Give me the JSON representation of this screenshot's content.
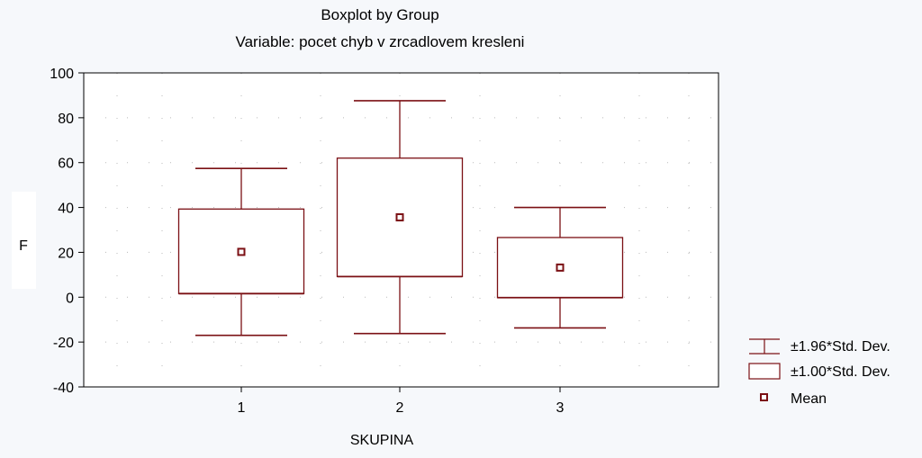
{
  "chart_data": {
    "type": "boxplot",
    "title": "Boxplot by Group",
    "subtitle": "Variable: pocet chyb v zrcadlovem kresleni",
    "xlabel": "SKUPINA",
    "ylabel": "F",
    "ylim": [
      -40,
      100
    ],
    "yticks": [
      100,
      80,
      60,
      40,
      20,
      0,
      -20,
      -40
    ],
    "categories": [
      "1",
      "2",
      "3"
    ],
    "boxes": [
      {
        "category": "1",
        "mean": 20.2,
        "sd1_low": 1.6,
        "sd1_high": 39.3,
        "sd196_low": -17.0,
        "sd196_high": 57.4
      },
      {
        "category": "2",
        "mean": 35.6,
        "sd1_low": 9.2,
        "sd1_high": 62.0,
        "sd196_low": -16.2,
        "sd196_high": 87.6
      },
      {
        "category": "3",
        "mean": 13.2,
        "sd1_low": -0.2,
        "sd1_high": 26.6,
        "sd196_low": -13.7,
        "sd196_high": 40.0
      }
    ],
    "legend": {
      "placement": "bottom-right",
      "items": [
        {
          "label": "±1.96*Std. Dev.",
          "kind": "whisker"
        },
        {
          "label": "±1.00*Std. Dev.",
          "kind": "box"
        },
        {
          "label": "Mean",
          "kind": "mean"
        }
      ]
    },
    "grid": "dotted",
    "colors": {
      "stroke": "#7b1014",
      "background": "#f6f8fb",
      "plot_bg": "#ffffff"
    }
  }
}
